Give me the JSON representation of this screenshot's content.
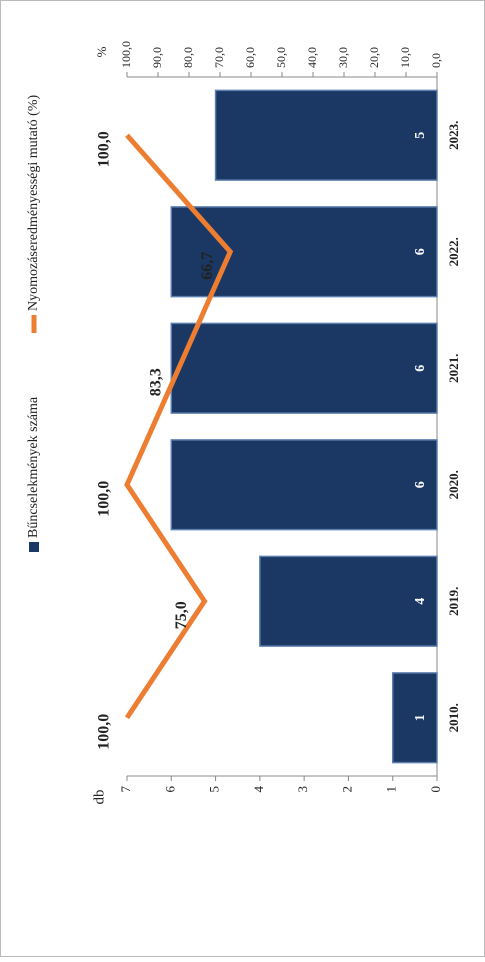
{
  "chart_data": {
    "type": "bar",
    "categories": [
      "2010.",
      "2019.",
      "2020.",
      "2021.",
      "2022.",
      "2023."
    ],
    "ylabel": "db",
    "y2label": "%",
    "ylim": [
      0,
      7
    ],
    "yticks": [
      0,
      1,
      2,
      3,
      4,
      5,
      6,
      7
    ],
    "y2lim": [
      0,
      100
    ],
    "y2ticks": [
      {
        "value": 0,
        "label": "0,0"
      },
      {
        "value": 10,
        "label": "10,0"
      },
      {
        "value": 20,
        "label": "20,0"
      },
      {
        "value": 30,
        "label": "30,0"
      },
      {
        "value": 40,
        "label": "40,0"
      },
      {
        "value": 50,
        "label": "50,0"
      },
      {
        "value": 60,
        "label": "60,0"
      },
      {
        "value": 70,
        "label": "70,0"
      },
      {
        "value": 80,
        "label": "80,0"
      },
      {
        "value": 90,
        "label": "90,0"
      },
      {
        "value": 100,
        "label": "100,0"
      }
    ],
    "series": [
      {
        "name": "Bűncselekmények száma",
        "color": "#1b3763",
        "type": "bar",
        "values": [
          1,
          4,
          6,
          6,
          6,
          5
        ]
      },
      {
        "name": "Nyomozáseredményességi mutató (%)",
        "color": "#ed7d31",
        "type": "line",
        "axis": "y2",
        "values": [
          100,
          75,
          100,
          83.3,
          66.7,
          100
        ],
        "value_labels": [
          "100,0",
          "75,0",
          "100,0",
          "83,3",
          "66,7",
          "100,0"
        ]
      }
    ]
  }
}
